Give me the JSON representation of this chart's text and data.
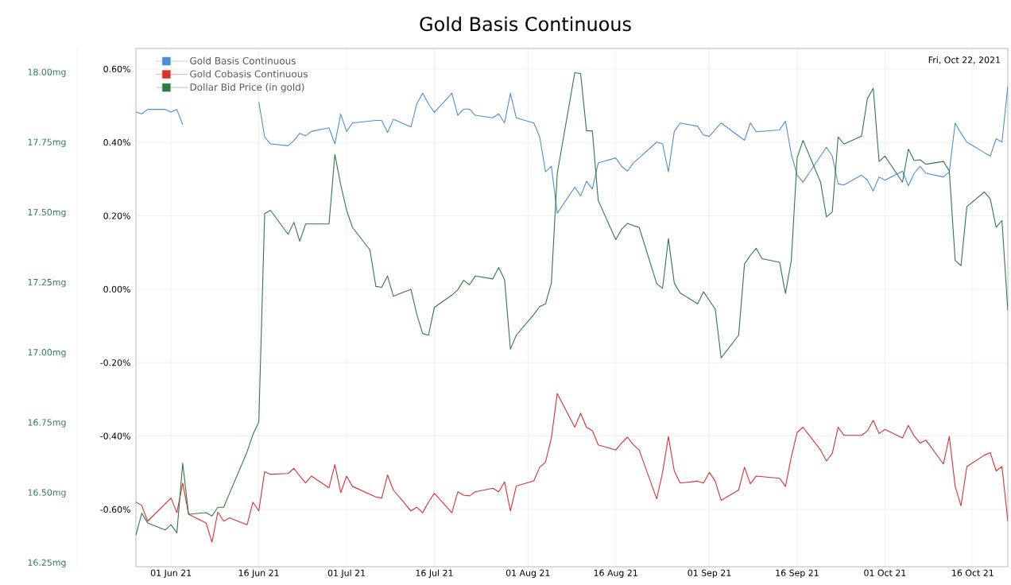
{
  "chart_data": {
    "type": "line",
    "title": "Gold Basis Continuous",
    "annotations": [
      "Fri, Oct 22, 2021"
    ],
    "xlim": [
      "2021-05-26",
      "2021-10-22"
    ],
    "xticks": [
      {
        "value": "2021-06-01",
        "label": "01 Jun 21"
      },
      {
        "value": "2021-06-16",
        "label": "16 Jun 21"
      },
      {
        "value": "2021-07-01",
        "label": "01 Jul 21"
      },
      {
        "value": "2021-07-16",
        "label": "16 Jul 21"
      },
      {
        "value": "2021-08-01",
        "label": "01 Aug 21"
      },
      {
        "value": "2021-08-16",
        "label": "16 Aug 21"
      },
      {
        "value": "2021-09-01",
        "label": "01 Sep 21"
      },
      {
        "value": "2021-09-16",
        "label": "16 Sep 21"
      },
      {
        "value": "2021-10-01",
        "label": "01 Oct 21"
      },
      {
        "value": "2021-10-16",
        "label": "16 Oct 21"
      }
    ],
    "ylim": [
      -0.756,
      0.656
    ],
    "yticks": [
      {
        "value": -0.6,
        "label": "-0.60%"
      },
      {
        "value": -0.4,
        "label": "-0.40%"
      },
      {
        "value": -0.2,
        "label": "-0.20%"
      },
      {
        "value": 0,
        "label": "0.00%"
      },
      {
        "value": 0.2,
        "label": "0.20%"
      },
      {
        "value": 0.4,
        "label": "0.40%"
      },
      {
        "value": 0.6,
        "label": "0.60%"
      }
    ],
    "y2lim": [
      16.238,
      18.087
    ],
    "y2ticks": [
      {
        "value": 16.25,
        "label": "16.25mg"
      },
      {
        "value": 16.5,
        "label": "16.50mg"
      },
      {
        "value": 16.75,
        "label": "16.75mg"
      },
      {
        "value": 17.0,
        "label": "17.00mg"
      },
      {
        "value": 17.25,
        "label": "17.25mg"
      },
      {
        "value": 17.5,
        "label": "17.50mg"
      },
      {
        "value": 17.75,
        "label": "17.75mg"
      },
      {
        "value": 18.0,
        "label": "18.00mg"
      }
    ],
    "grid": true,
    "legend": "top left",
    "series": [
      {
        "name": "Gold Basis Continuous",
        "color": "#4a8fd0",
        "x": [
          "2021-05-26",
          "2021-05-27",
          "2021-05-28",
          "2021-05-31",
          "2021-06-01",
          "2021-06-02",
          "2021-06-03",
          "2021-06-04",
          "2021-06-07",
          "2021-06-08",
          "2021-06-09",
          "2021-06-10",
          "2021-06-11",
          "2021-06-14",
          "2021-06-15",
          "2021-06-16",
          "2021-06-17",
          "2021-06-18",
          "2021-06-21",
          "2021-06-22",
          "2021-06-23",
          "2021-06-24",
          "2021-06-25",
          "2021-06-28",
          "2021-06-29",
          "2021-06-30",
          "2021-07-01",
          "2021-07-02",
          "2021-07-06",
          "2021-07-07",
          "2021-07-08",
          "2021-07-09",
          "2021-07-12",
          "2021-07-13",
          "2021-07-14",
          "2021-07-15",
          "2021-07-16",
          "2021-07-19",
          "2021-07-20",
          "2021-07-21",
          "2021-07-22",
          "2021-07-23",
          "2021-07-26",
          "2021-07-27",
          "2021-07-28",
          "2021-07-29",
          "2021-07-30",
          "2021-08-02",
          "2021-08-03",
          "2021-08-04",
          "2021-08-05",
          "2021-08-06",
          "2021-08-09",
          "2021-08-10",
          "2021-08-11",
          "2021-08-12",
          "2021-08-13",
          "2021-08-16",
          "2021-08-17",
          "2021-08-18",
          "2021-08-19",
          "2021-08-20",
          "2021-08-23",
          "2021-08-24",
          "2021-08-25",
          "2021-08-26",
          "2021-08-27",
          "2021-08-30",
          "2021-08-31",
          "2021-09-01",
          "2021-09-03",
          "2021-09-07",
          "2021-09-08",
          "2021-09-09",
          "2021-09-13",
          "2021-09-14",
          "2021-09-15",
          "2021-09-16",
          "2021-09-17",
          "2021-09-21",
          "2021-09-22",
          "2021-09-23",
          "2021-09-24",
          "2021-09-27",
          "2021-09-28",
          "2021-09-29",
          "2021-09-30",
          "2021-10-01",
          "2021-10-04",
          "2021-10-05",
          "2021-10-06",
          "2021-10-07",
          "2021-10-08",
          "2021-10-11",
          "2021-10-12",
          "2021-10-13",
          "2021-10-14",
          "2021-10-15",
          "2021-10-18",
          "2021-10-19",
          "2021-10-20",
          "2021-10-21",
          "2021-10-22"
        ],
        "values": [
          0.483,
          0.478,
          0.49,
          0.49,
          0.483,
          0.49,
          0.448,
          null,
          null,
          null,
          null,
          null,
          null,
          null,
          null,
          0.51,
          0.415,
          0.396,
          0.391,
          0.405,
          0.425,
          0.418,
          0.43,
          0.44,
          0.396,
          0.477,
          0.43,
          0.453,
          0.46,
          0.46,
          0.427,
          0.463,
          0.442,
          0.505,
          0.534,
          0.505,
          0.482,
          0.534,
          0.474,
          0.491,
          0.491,
          0.474,
          0.467,
          0.478,
          0.453,
          0.534,
          0.467,
          0.453,
          0.415,
          0.32,
          0.335,
          0.207,
          0.278,
          0.254,
          0.294,
          0.273,
          0.344,
          0.358,
          0.335,
          0.322,
          0.344,
          0.358,
          0.401,
          0.396,
          0.32,
          0.43,
          0.453,
          0.444,
          0.42,
          0.417,
          0.453,
          0.406,
          0.453,
          0.429,
          0.434,
          0.458,
          0.368,
          0.311,
          0.292,
          0.387,
          0.363,
          0.287,
          0.284,
          0.311,
          0.297,
          0.268,
          0.306,
          0.297,
          0.322,
          0.282,
          0.316,
          0.335,
          0.316,
          0.306,
          0.32,
          0.453,
          0.425,
          0.401,
          0.372,
          0.363,
          0.41,
          0.401,
          0.553
        ]
      },
      {
        "name": "Gold Cobasis Continuous",
        "color": "#d93030",
        "x": [
          "2021-05-26",
          "2021-05-27",
          "2021-05-28",
          "2021-06-01",
          "2021-06-02",
          "2021-06-03",
          "2021-06-04",
          "2021-06-07",
          "2021-06-08",
          "2021-06-09",
          "2021-06-10",
          "2021-06-11",
          "2021-06-14",
          "2021-06-15",
          "2021-06-16",
          "2021-06-17",
          "2021-06-18",
          "2021-06-21",
          "2021-06-22",
          "2021-06-23",
          "2021-06-24",
          "2021-06-25",
          "2021-06-28",
          "2021-06-29",
          "2021-06-30",
          "2021-07-01",
          "2021-07-02",
          "2021-07-06",
          "2021-07-07",
          "2021-07-08",
          "2021-07-09",
          "2021-07-12",
          "2021-07-13",
          "2021-07-14",
          "2021-07-15",
          "2021-07-16",
          "2021-07-19",
          "2021-07-20",
          "2021-07-21",
          "2021-07-22",
          "2021-07-23",
          "2021-07-26",
          "2021-07-27",
          "2021-07-28",
          "2021-07-29",
          "2021-07-30",
          "2021-08-02",
          "2021-08-03",
          "2021-08-04",
          "2021-08-05",
          "2021-08-06",
          "2021-08-09",
          "2021-08-10",
          "2021-08-11",
          "2021-08-12",
          "2021-08-13",
          "2021-08-16",
          "2021-08-17",
          "2021-08-18",
          "2021-08-19",
          "2021-08-20",
          "2021-08-23",
          "2021-08-24",
          "2021-08-25",
          "2021-08-26",
          "2021-08-27",
          "2021-08-30",
          "2021-08-31",
          "2021-09-01",
          "2021-09-02",
          "2021-09-03",
          "2021-09-06",
          "2021-09-07",
          "2021-09-08",
          "2021-09-09",
          "2021-09-13",
          "2021-09-14",
          "2021-09-15",
          "2021-09-16",
          "2021-09-17",
          "2021-09-20",
          "2021-09-21",
          "2021-09-22",
          "2021-09-23",
          "2021-09-24",
          "2021-09-27",
          "2021-09-28",
          "2021-09-29",
          "2021-09-30",
          "2021-10-01",
          "2021-10-04",
          "2021-10-05",
          "2021-10-06",
          "2021-10-07",
          "2021-10-08",
          "2021-10-11",
          "2021-10-12",
          "2021-10-13",
          "2021-10-14",
          "2021-10-15",
          "2021-10-18",
          "2021-10-19",
          "2021-10-20",
          "2021-10-21",
          "2021-10-22"
        ],
        "values": [
          -0.58,
          -0.589,
          -0.632,
          -0.569,
          -0.609,
          -0.528,
          -0.613,
          -0.637,
          -0.689,
          -0.607,
          -0.632,
          -0.623,
          -0.642,
          -0.58,
          -0.604,
          -0.497,
          -0.504,
          -0.502,
          -0.488,
          -0.509,
          -0.528,
          -0.509,
          -0.541,
          -0.478,
          -0.554,
          -0.509,
          -0.537,
          -0.566,
          -0.569,
          -0.506,
          -0.547,
          -0.604,
          -0.594,
          -0.609,
          -0.58,
          -0.556,
          -0.609,
          -0.552,
          -0.561,
          -0.563,
          -0.552,
          -0.542,
          -0.552,
          -0.525,
          -0.604,
          -0.536,
          -0.522,
          -0.485,
          -0.471,
          -0.405,
          -0.284,
          -0.376,
          -0.338,
          -0.376,
          -0.385,
          -0.424,
          -0.438,
          -0.419,
          -0.403,
          -0.424,
          -0.438,
          -0.571,
          -0.499,
          -0.401,
          -0.495,
          -0.528,
          -0.523,
          -0.528,
          -0.499,
          -0.523,
          -0.575,
          -0.547,
          -0.485,
          -0.53,
          -0.509,
          -0.515,
          -0.537,
          -0.457,
          -0.39,
          -0.376,
          -0.438,
          -0.468,
          -0.447,
          -0.376,
          -0.398,
          -0.398,
          -0.386,
          -0.357,
          -0.393,
          -0.382,
          -0.405,
          -0.371,
          -0.4,
          -0.419,
          -0.411,
          -0.476,
          -0.401,
          -0.537,
          -0.59,
          -0.483,
          -0.452,
          -0.445,
          -0.495,
          -0.483,
          -0.632
        ]
      },
      {
        "name": "Dollar Bid Price (in gold)",
        "color": "#2f7a45",
        "axis": "y2",
        "x": [
          "2021-05-26",
          "2021-05-27",
          "2021-05-28",
          "2021-05-31",
          "2021-06-01",
          "2021-06-02",
          "2021-06-03",
          "2021-06-04",
          "2021-06-07",
          "2021-06-08",
          "2021-06-09",
          "2021-06-10",
          "2021-06-11",
          "2021-06-14",
          "2021-06-15",
          "2021-06-16",
          "2021-06-17",
          "2021-06-18",
          "2021-06-21",
          "2021-06-22",
          "2021-06-23",
          "2021-06-24",
          "2021-06-25",
          "2021-06-28",
          "2021-06-29",
          "2021-06-30",
          "2021-07-01",
          "2021-07-02",
          "2021-07-05",
          "2021-07-06",
          "2021-07-07",
          "2021-07-08",
          "2021-07-09",
          "2021-07-12",
          "2021-07-13",
          "2021-07-14",
          "2021-07-15",
          "2021-07-16",
          "2021-07-19",
          "2021-07-20",
          "2021-07-21",
          "2021-07-22",
          "2021-07-23",
          "2021-07-26",
          "2021-07-27",
          "2021-07-28",
          "2021-07-29",
          "2021-07-30",
          "2021-08-02",
          "2021-08-03",
          "2021-08-04",
          "2021-08-05",
          "2021-08-06",
          "2021-08-09",
          "2021-08-10",
          "2021-08-11",
          "2021-08-12",
          "2021-08-13",
          "2021-08-16",
          "2021-08-17",
          "2021-08-18",
          "2021-08-19",
          "2021-08-20",
          "2021-08-23",
          "2021-08-24",
          "2021-08-25",
          "2021-08-26",
          "2021-08-27",
          "2021-08-30",
          "2021-08-31",
          "2021-09-01",
          "2021-09-02",
          "2021-09-03",
          "2021-09-06",
          "2021-09-07",
          "2021-09-08",
          "2021-09-09",
          "2021-09-10",
          "2021-09-13",
          "2021-09-14",
          "2021-09-15",
          "2021-09-16",
          "2021-09-17",
          "2021-09-20",
          "2021-09-21",
          "2021-09-22",
          "2021-09-23",
          "2021-09-24",
          "2021-09-27",
          "2021-09-28",
          "2021-09-29",
          "2021-09-30",
          "2021-10-01",
          "2021-10-04",
          "2021-10-05",
          "2021-10-06",
          "2021-10-07",
          "2021-10-08",
          "2021-10-11",
          "2021-10-12",
          "2021-10-13",
          "2021-10-14",
          "2021-10-15",
          "2021-10-18",
          "2021-10-19",
          "2021-10-20",
          "2021-10-21",
          "2021-10-22"
        ],
        "values": [
          16.35,
          16.429,
          16.394,
          16.369,
          16.388,
          16.359,
          16.607,
          16.425,
          16.431,
          16.419,
          16.45,
          16.45,
          16.5,
          16.648,
          16.71,
          16.754,
          17.498,
          17.51,
          17.424,
          17.467,
          17.399,
          17.461,
          17.461,
          17.461,
          17.709,
          17.6,
          17.51,
          17.449,
          17.368,
          17.238,
          17.235,
          17.275,
          17.203,
          17.228,
          17.138,
          17.07,
          17.064,
          17.163,
          17.207,
          17.226,
          17.26,
          17.244,
          17.275,
          17.265,
          17.306,
          17.262,
          17.014,
          17.064,
          17.138,
          17.166,
          17.176,
          17.25,
          17.641,
          18.001,
          17.997,
          17.793,
          17.793,
          17.545,
          17.405,
          17.442,
          17.463,
          17.455,
          17.449,
          17.248,
          17.231,
          17.409,
          17.25,
          17.215,
          17.176,
          17.219,
          17.188,
          17.157,
          16.983,
          17.064,
          17.318,
          17.349,
          17.374,
          17.337,
          17.324,
          17.213,
          17.331,
          17.697,
          17.759,
          17.61,
          17.486,
          17.504,
          17.771,
          17.746,
          17.774,
          17.908,
          17.945,
          17.684,
          17.703,
          17.61,
          17.728,
          17.687,
          17.69,
          17.674,
          17.684,
          17.65,
          17.331,
          17.312,
          17.523,
          17.575,
          17.55,
          17.449,
          17.473,
          17.151
        ]
      }
    ]
  }
}
